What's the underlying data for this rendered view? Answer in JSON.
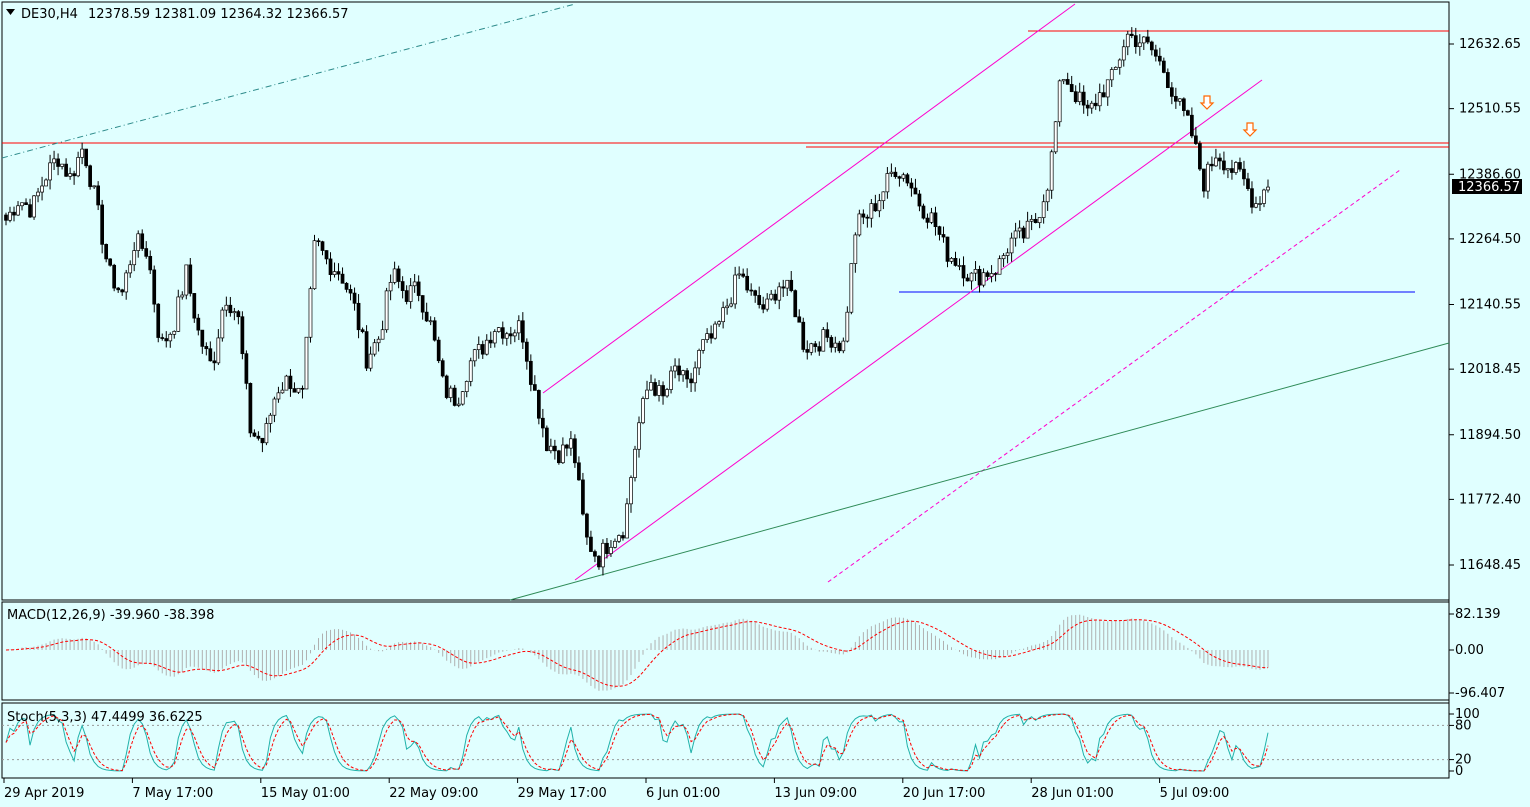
{
  "chart_data": {
    "type": "candlestick",
    "symbol_label": "DE30,H4",
    "ohlc_values": [
      "12378.59",
      "12381.09",
      "12364.32",
      "12366.57"
    ],
    "current_price": "12366.57",
    "y_ticks": [
      "12632.65",
      "12510.55",
      "12386.60",
      "12264.50",
      "12140.55",
      "12018.45",
      "11894.50",
      "11772.40",
      "11648.45"
    ],
    "x_ticks": [
      "29 Apr 2019",
      "7 May 17:00",
      "15 May 01:00",
      "22 May 09:00",
      "29 May 17:00",
      "6 Jun 01:00",
      "13 Jun 09:00",
      "20 Jun 17:00",
      "28 Jun 01:00",
      "5 Jul 09:00"
    ],
    "ylim": [
      11600,
      12680
    ],
    "closes_approx": [
      12300,
      12340,
      12320,
      12380,
      12420,
      12380,
      12440,
      12330,
      12200,
      12160,
      12260,
      12240,
      12060,
      12100,
      12200,
      12080,
      12020,
      12160,
      12120,
      11900,
      11880,
      11980,
      12000,
      11960,
      12260,
      12220,
      12200,
      12140,
      12040,
      12080,
      12200,
      12160,
      12170,
      12100,
      11980,
      11960,
      12030,
      12060,
      12100,
      12090,
      12100,
      11980,
      11880,
      11860,
      11880,
      11700,
      11660,
      11700,
      11720,
      11900,
      12000,
      11960,
      12020,
      11980,
      12060,
      12080,
      12140,
      12200,
      12150,
      12130,
      12180,
      12160,
      12060,
      12070,
      12080,
      12060,
      12290,
      12310,
      12350,
      12400,
      12380,
      12330,
      12300,
      12240,
      12220,
      12190,
      12200,
      12210,
      12260,
      12270,
      12300,
      12380,
      12580,
      12540,
      12500,
      12540,
      12570,
      12650,
      12640,
      12620,
      12580,
      12520,
      12470,
      12370,
      12430,
      12400,
      12380,
      12330,
      12370
    ],
    "indicators": [
      {
        "title": "MACD(12,26,9) -39.960 -38.398",
        "ticks": [
          "82.139",
          "0.00",
          "-96.407"
        ]
      },
      {
        "title": "Stoch(5,3,3) 47.4499 36.6225",
        "ticks": [
          "100",
          "80",
          "20",
          "0"
        ]
      }
    ],
    "annotations": [
      "upward channel (magenta)",
      "horizontal resistance (red)",
      "horizontal support (blue)",
      "long-term trendline (green)",
      "two down arrows (orange)"
    ],
    "colors": {
      "background": "#e0ffff",
      "candles": "#000000",
      "channel": "#ff00cc",
      "resistance": "#ff0000",
      "support": "#0000ff",
      "trend": "#2e8b57",
      "arrow": "#ff6600"
    }
  }
}
